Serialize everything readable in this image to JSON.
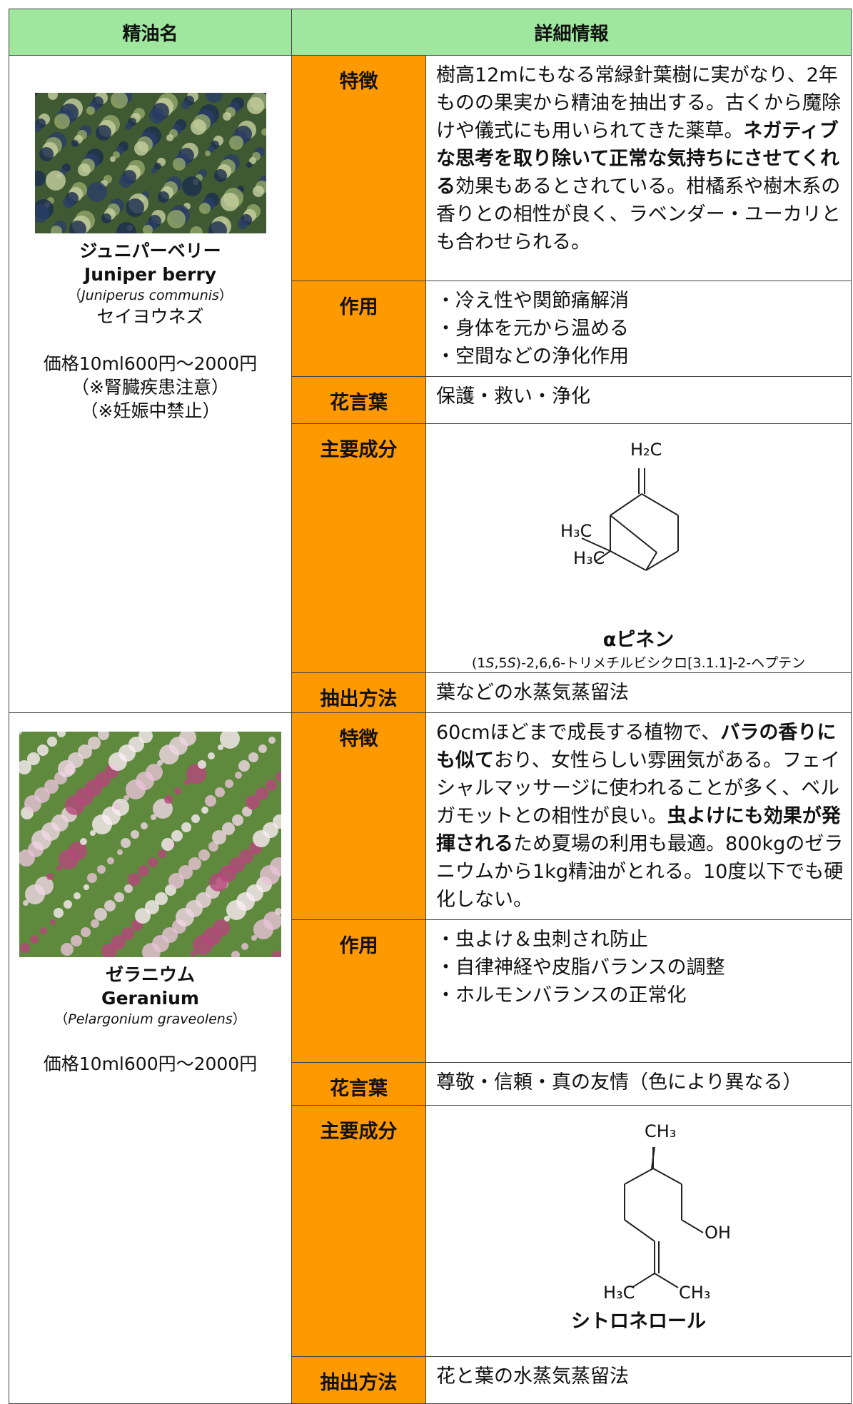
{
  "header": {
    "name": "精油名",
    "detail": "詳細情報"
  },
  "oils": [
    {
      "name_ja": "ジュニパーベリー",
      "name_en": "Juniper berry",
      "scientific": [
        {
          "text": "（"
        },
        {
          "text": "Juniperus communis",
          "italic": true
        },
        {
          "text": "）"
        }
      ],
      "common_name": "セイヨウネズ",
      "price": "価格10ml600円～2000円",
      "notes": [
        "（※腎臓疾患注意）",
        "（※妊娠中禁止）"
      ],
      "details": [
        {
          "label": "特徴",
          "segments": [
            {
              "text": "樹高12mにもなる常緑針葉樹に実がなり、2年ものの果実から精油を抽出する。古くから魔除けや儀式にも用いられてきた薬草。"
            },
            {
              "text": "ネガティブな思考を取り除いて正常な気持ちにさせてくれる",
              "bold": true
            },
            {
              "text": "効果もあるとされている。柑橘系や樹木系の香りとの相性が良く、ラベンダー・ユーカリとも合わせられる。"
            }
          ]
        },
        {
          "label": "作用",
          "items": [
            "・冷え性や関節痛解消",
            "・身体を元から温める",
            "・空間などの浄化作用"
          ]
        },
        {
          "label": "花言葉",
          "text": "保護・救い・浄化"
        },
        {
          "label": "主要成分",
          "compound": {
            "atoms": [
              "H₂C",
              "H₃C",
              "H₃C"
            ],
            "name": "αピネン",
            "iupac": [
              {
                "text": "(1"
              },
              {
                "text": "S",
                "italic": true
              },
              {
                "text": ",5"
              },
              {
                "text": "S",
                "italic": true
              },
              {
                "text": ")-2,6,6-トリメチルビシクロ[3.1.1]-2-ヘプテン"
              }
            ]
          }
        },
        {
          "label": "抽出方法",
          "text": "葉などの水蒸気蒸留法"
        }
      ]
    },
    {
      "name_ja": "ゼラニウム",
      "name_en": "Geranium",
      "scientific": [
        {
          "text": "（"
        },
        {
          "text": "Pelargonium graveolens",
          "italic": true
        },
        {
          "text": "）"
        }
      ],
      "price": "価格10ml600円～2000円",
      "details": [
        {
          "label": "特徴",
          "segments": [
            {
              "text": "60cmほどまで成長する植物で、"
            },
            {
              "text": "バラの香りにも似て",
              "bold": true
            },
            {
              "text": "おり、女性らしい雰囲気がある。フェイシャルマッサージに使われることが多く、ベルガモットとの相性が良い。"
            },
            {
              "text": "虫よけにも効果が発揮される",
              "bold": true
            },
            {
              "text": "ため夏場の利用も最適。800kgのゼラニウムから1kg精油がとれる。10度以下でも硬化しない。"
            }
          ]
        },
        {
          "label": "作用",
          "items": [
            "・虫よけ＆虫刺され防止",
            "・自律神経や皮脂バランスの調整",
            "・ホルモンバランスの正常化"
          ]
        },
        {
          "label": "花言葉",
          "text": "尊敬・信頼・真の友情（色により異なる）"
        },
        {
          "label": "主要成分",
          "compound": {
            "atoms": [
              "CH₃",
              "OH",
              "H₃C",
              "CH₃"
            ],
            "name": "シトロネロール"
          }
        },
        {
          "label": "抽出方法",
          "text": "花と葉の水蒸気蒸留法"
        }
      ]
    }
  ]
}
